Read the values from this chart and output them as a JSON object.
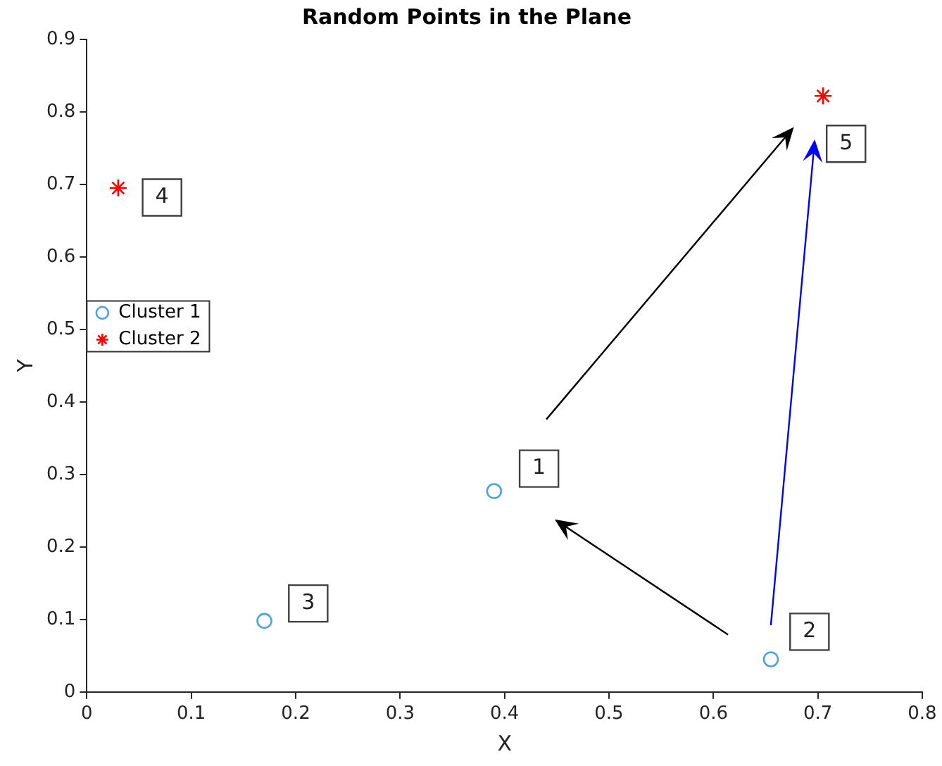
{
  "chart_data": {
    "type": "scatter",
    "title": "Random Points in the Plane",
    "xlabel": "X",
    "ylabel": "Y",
    "series": [
      {
        "name": "Cluster 1",
        "color": "#4da3df",
        "marker": "circle",
        "x": [
          0.39,
          0.655,
          0.17
        ],
        "values": [
          0.277,
          0.045,
          0.098
        ]
      },
      {
        "name": "Cluster 2",
        "color": "#ff0000",
        "marker": "cross",
        "x": [
          0.03,
          0.705
        ],
        "values": [
          0.695,
          0.822
        ]
      }
    ],
    "annotations": [
      {
        "text": "1",
        "x": 0.433,
        "y": 0.308
      },
      {
        "text": "2",
        "x": 0.692,
        "y": 0.083
      },
      {
        "text": "3",
        "x": 0.212,
        "y": 0.122
      },
      {
        "text": "4",
        "x": 0.072,
        "y": 0.682
      },
      {
        "text": "5",
        "x": 0.727,
        "y": 0.756
      }
    ],
    "xlim": [
      0,
      0.8
    ],
    "xticks": [
      0,
      0.1,
      0.2,
      0.3,
      0.4,
      0.5,
      0.6,
      0.7,
      0.8
    ],
    "ylim": [
      0,
      0.9
    ],
    "yticks": [
      0,
      0.1,
      0.2,
      0.3,
      0.4,
      0.5,
      0.6,
      0.7,
      0.8,
      0.9
    ],
    "grid": false,
    "legend": "top"
  }
}
